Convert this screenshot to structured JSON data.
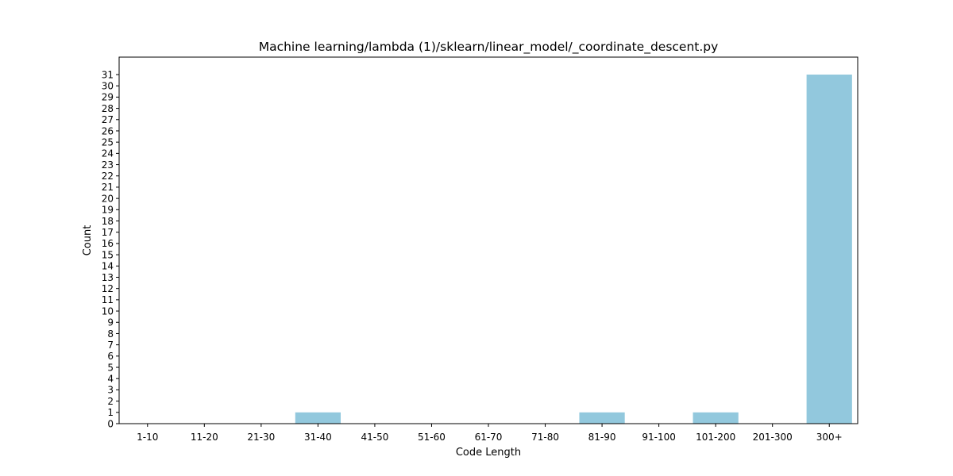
{
  "chart_data": {
    "type": "bar",
    "title": "Machine learning/lambda (1)/sklearn/linear_model/_coordinate_descent.py",
    "xlabel": "Code Length",
    "ylabel": "Count",
    "categories": [
      "1-10",
      "11-20",
      "21-30",
      "31-40",
      "41-50",
      "51-60",
      "61-70",
      "71-80",
      "81-90",
      "91-100",
      "101-200",
      "201-300",
      "300+"
    ],
    "values": [
      0,
      0,
      0,
      1,
      0,
      0,
      0,
      0,
      1,
      0,
      1,
      0,
      31
    ],
    "ylim": [
      0,
      32.55
    ],
    "yticks": [
      0,
      1,
      2,
      3,
      4,
      5,
      6,
      7,
      8,
      9,
      10,
      11,
      12,
      13,
      14,
      15,
      16,
      17,
      18,
      19,
      20,
      21,
      22,
      23,
      24,
      25,
      26,
      27,
      28,
      29,
      30,
      31
    ],
    "grid": false,
    "bar_color": "#92c8dd"
  }
}
